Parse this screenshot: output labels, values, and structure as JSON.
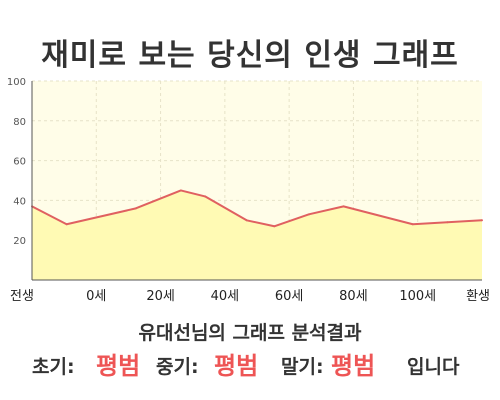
{
  "title": "재미로 보는 당신의 인생 그래프",
  "chart_data": {
    "type": "area",
    "x": [
      -10,
      0,
      20,
      33,
      40,
      52,
      60,
      70,
      80,
      100,
      110,
      120
    ],
    "values": [
      37,
      28,
      36,
      45,
      42,
      30,
      27,
      33,
      37,
      28,
      29,
      30
    ],
    "ylim": [
      0,
      100
    ],
    "yticks": [
      "20",
      "40",
      "60",
      "80",
      "100"
    ],
    "xticks": [
      "전생",
      "0세",
      "20세",
      "40세",
      "60세",
      "80세",
      "100세",
      "환생"
    ],
    "grid": true,
    "colors": {
      "line": "#e06060",
      "fill": "#fffab4",
      "background": "#fffde8"
    }
  },
  "result": {
    "heading": "유대선님의 그래프 분석결과",
    "early_label": "초기:",
    "early_value": "평범",
    "mid_label": "중기:",
    "mid_value": "평범",
    "late_label": "말기:",
    "late_value": "평범",
    "suffix": "입니다"
  },
  "colors": {
    "accent": "#ee5555",
    "text": "#333333"
  }
}
